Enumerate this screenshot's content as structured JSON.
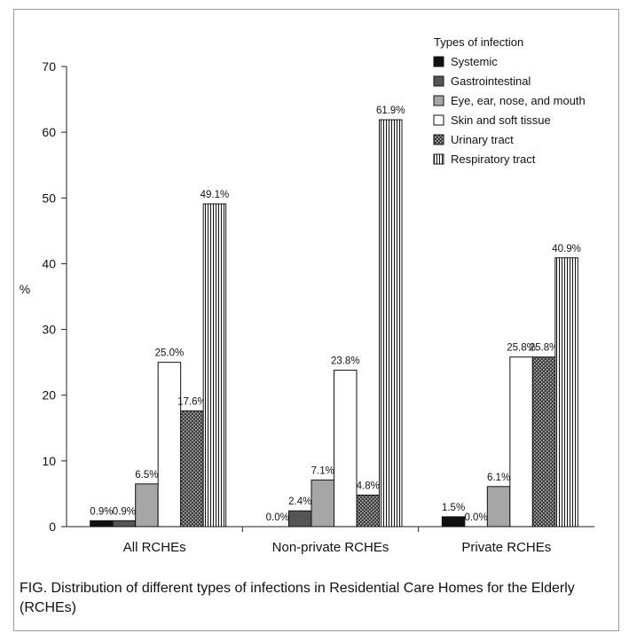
{
  "chart_data": {
    "type": "bar",
    "ylabel": "%",
    "ylim": [
      0,
      70
    ],
    "yticks": [
      0,
      10,
      20,
      30,
      40,
      50,
      60,
      70
    ],
    "categories": [
      "All RCHEs",
      "Non-private RCHEs",
      "Private RCHEs"
    ],
    "legend_title": "Types of infection",
    "legend_position": "top-right",
    "series": [
      {
        "name": "Systemic",
        "values": [
          0.9,
          0.0,
          1.5
        ],
        "labels": [
          "0.9%",
          "0.0%",
          "1.5%"
        ],
        "fill": "#111111"
      },
      {
        "name": "Gastrointestinal",
        "values": [
          0.9,
          2.4,
          0.0
        ],
        "labels": [
          "0.9%",
          "2.4%",
          "0.0%"
        ],
        "fill": "#555555"
      },
      {
        "name": "Eye, ear, nose, and mouth",
        "values": [
          6.5,
          7.1,
          6.1
        ],
        "labels": [
          "6.5%",
          "7.1%",
          "6.1%"
        ],
        "fill": "#a6a6a6"
      },
      {
        "name": "Skin and soft tissue",
        "values": [
          25.0,
          23.8,
          25.8
        ],
        "labels": [
          "25.0%",
          "23.8%",
          "25.8%"
        ],
        "fill": "#ffffff"
      },
      {
        "name": "Urinary tract",
        "values": [
          17.6,
          4.8,
          25.8
        ],
        "labels": [
          "17.6%",
          "4.8%",
          "25.8%"
        ],
        "fill": "url(#pat-dots)"
      },
      {
        "name": "Respiratory tract",
        "values": [
          49.1,
          61.9,
          40.9
        ],
        "labels": [
          "49.1%",
          "61.9%",
          "40.9%"
        ],
        "fill": "url(#pat-vlines)"
      }
    ]
  },
  "caption": "FIG.  Distribution of different types of infections in Residential Care Homes for the Elderly (RCHEs)"
}
